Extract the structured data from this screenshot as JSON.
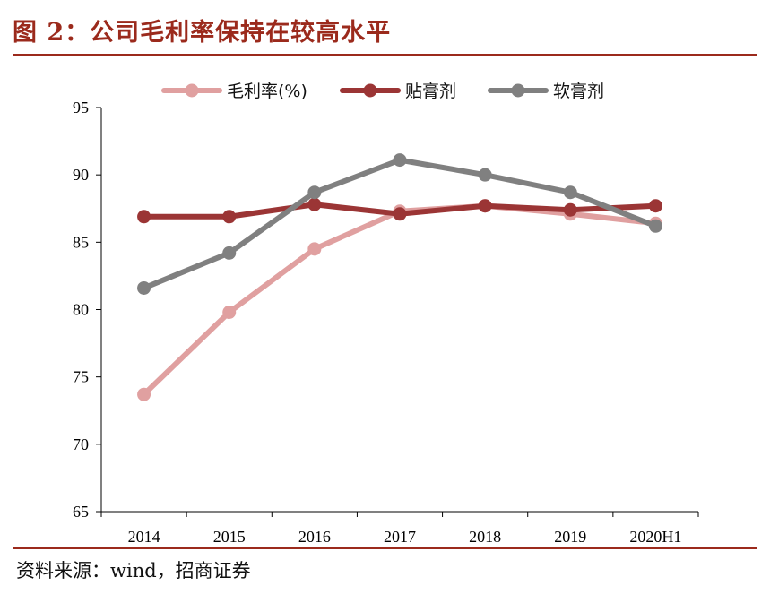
{
  "figure": {
    "title": "图 2：公司毛利率保持在较高水平",
    "source": "资料来源：wind，招商证券"
  },
  "chart_data": {
    "type": "line",
    "categories": [
      "2014",
      "2015",
      "2016",
      "2017",
      "2018",
      "2019",
      "2020H1"
    ],
    "series": [
      {
        "name": "毛利率(%)",
        "color": "#e0a0a0",
        "values": [
          73.7,
          79.8,
          84.5,
          87.3,
          87.7,
          87.1,
          86.4
        ]
      },
      {
        "name": "贴膏剂",
        "color": "#9b3535",
        "values": [
          86.9,
          86.9,
          87.8,
          87.1,
          87.7,
          87.4,
          87.7
        ]
      },
      {
        "name": "软膏剂",
        "color": "#808080",
        "values": [
          81.6,
          84.2,
          88.7,
          91.1,
          90.0,
          88.7,
          86.2
        ]
      }
    ],
    "ylim": [
      65,
      95
    ],
    "yticks": [
      65,
      70,
      75,
      80,
      85,
      90,
      95
    ],
    "xlabel": "",
    "ylabel": "",
    "grid": false,
    "legend_position": "top-center"
  }
}
